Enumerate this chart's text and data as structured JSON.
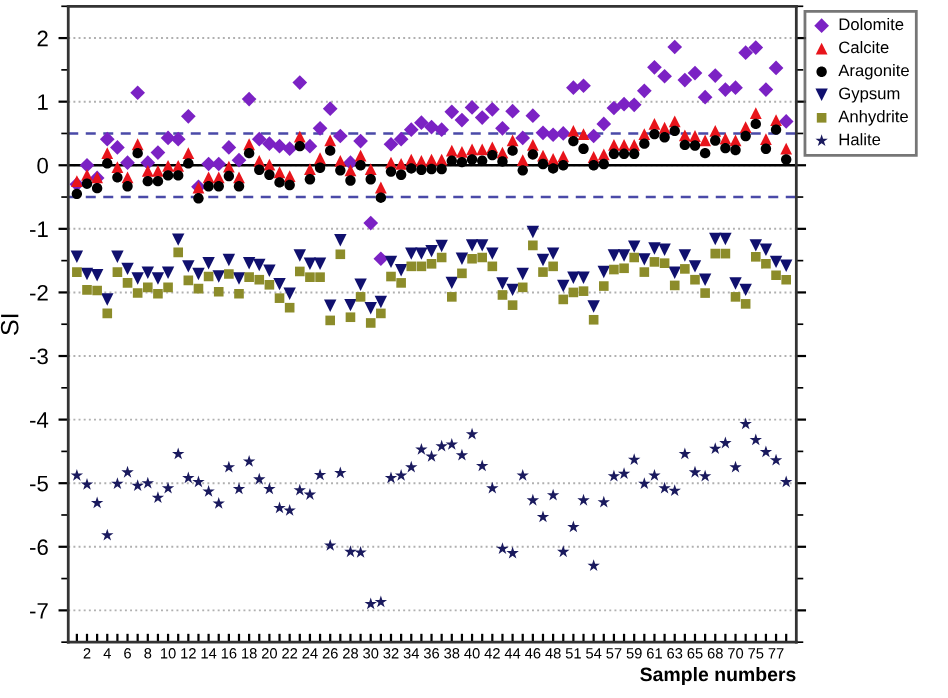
{
  "chart_data": {
    "type": "scatter",
    "xlabel": "Sample numbers",
    "ylabel": "SI",
    "categories": [
      null,
      "2",
      null,
      "4",
      null,
      "6",
      null,
      "8",
      null,
      "10",
      null,
      "12",
      null,
      "14",
      null,
      "16",
      null,
      "18",
      null,
      "20",
      null,
      "22",
      null,
      "24",
      null,
      "26",
      null,
      "28",
      null,
      "30",
      null,
      "32",
      null,
      "34",
      null,
      "36",
      null,
      "38",
      null,
      "40",
      null,
      "42",
      null,
      "44",
      null,
      "46",
      null,
      "48",
      null,
      "51",
      null,
      "54",
      null,
      "57",
      null,
      "59",
      null,
      "61",
      null,
      "63",
      null,
      "65",
      null,
      "68",
      null,
      "70",
      null,
      "75",
      null,
      "77",
      null
    ],
    "ylim": [
      -7.5,
      2.5
    ],
    "yticks": [
      -7,
      -6,
      -5,
      -4,
      -3,
      -2,
      -1,
      0,
      1,
      2
    ],
    "grid": "y",
    "legend": "top right",
    "ref_lines": [
      {
        "axis": "y",
        "value": 0,
        "color": "#000000",
        "line_style": "solid"
      },
      {
        "axis": "y",
        "value": 0.5,
        "color": "#4a4aa8",
        "line_style": "dashed"
      },
      {
        "axis": "y",
        "value": -0.5,
        "color": "#4a4aa8",
        "line_style": "dashed"
      }
    ],
    "series": [
      {
        "name": "Dolomite",
        "color": "#7b22c4",
        "marker": "diamond",
        "values": [
          -0.3,
          0.0,
          -0.2,
          0.41,
          0.28,
          0.04,
          1.14,
          0.04,
          0.2,
          0.43,
          0.41,
          0.77,
          -0.34,
          0.02,
          0.02,
          0.28,
          0.08,
          1.04,
          0.41,
          0.34,
          0.3,
          0.26,
          1.3,
          0.3,
          0.58,
          0.89,
          0.46,
          0.04,
          0.38,
          -0.91,
          -1.47,
          0.33,
          0.41,
          0.56,
          0.67,
          0.6,
          0.56,
          0.84,
          0.71,
          0.91,
          0.75,
          0.88,
          0.58,
          0.85,
          0.43,
          0.78,
          0.51,
          0.48,
          0.5,
          1.22,
          1.25,
          0.46,
          0.65,
          0.9,
          0.96,
          0.95,
          1.17,
          1.54,
          1.4,
          1.86,
          1.34,
          1.45,
          1.07,
          1.41,
          1.19,
          1.22,
          1.77,
          1.85,
          1.19,
          1.53,
          0.69
        ]
      },
      {
        "name": "Calcite",
        "color": "#e8141b",
        "marker": "triangle",
        "values": [
          -0.25,
          -0.15,
          -0.19,
          0.19,
          -0.03,
          -0.19,
          0.33,
          -0.09,
          -0.09,
          -0.01,
          -0.01,
          0.19,
          -0.35,
          -0.19,
          -0.19,
          -0.02,
          -0.19,
          0.33,
          0.07,
          0.01,
          -0.11,
          -0.17,
          0.45,
          -0.06,
          0.11,
          0.39,
          0.07,
          -0.08,
          0.15,
          -0.06,
          -0.35,
          0.04,
          0.02,
          0.09,
          0.07,
          0.09,
          0.09,
          0.23,
          0.21,
          0.25,
          0.25,
          0.28,
          0.2,
          0.39,
          0.08,
          0.32,
          0.15,
          0.1,
          0.14,
          0.54,
          0.49,
          0.13,
          0.17,
          0.32,
          0.32,
          0.32,
          0.49,
          0.65,
          0.59,
          0.69,
          0.47,
          0.46,
          0.39,
          0.54,
          0.42,
          0.39,
          0.6,
          0.82,
          0.41,
          0.71,
          0.26
        ]
      },
      {
        "name": "Aragonite",
        "color": "#000000",
        "marker": "circle",
        "values": [
          -0.45,
          -0.29,
          -0.36,
          0.03,
          -0.19,
          -0.33,
          0.19,
          -0.25,
          -0.25,
          -0.16,
          -0.16,
          0.03,
          -0.52,
          -0.33,
          -0.33,
          -0.17,
          -0.33,
          0.19,
          -0.07,
          -0.15,
          -0.27,
          -0.31,
          0.3,
          -0.22,
          -0.04,
          0.23,
          -0.08,
          -0.24,
          0.0,
          -0.22,
          -0.51,
          -0.1,
          -0.15,
          -0.05,
          -0.07,
          -0.06,
          -0.06,
          0.07,
          0.05,
          0.09,
          0.07,
          0.16,
          0.06,
          0.23,
          -0.08,
          0.17,
          0.02,
          -0.05,
          0.0,
          0.38,
          0.26,
          0.0,
          0.02,
          0.18,
          0.18,
          0.18,
          0.34,
          0.49,
          0.44,
          0.54,
          0.32,
          0.31,
          0.19,
          0.39,
          0.27,
          0.24,
          0.46,
          0.65,
          0.26,
          0.56,
          0.09
        ]
      },
      {
        "name": "Gypsum",
        "color": "#10106e",
        "marker": "triangle-down",
        "values": [
          -1.44,
          -1.71,
          -1.73,
          -2.11,
          -1.44,
          -1.63,
          -1.78,
          -1.69,
          -1.78,
          -1.69,
          -1.17,
          -1.59,
          -1.71,
          -1.54,
          -1.75,
          -1.49,
          -1.78,
          -1.54,
          -1.57,
          -1.66,
          -1.87,
          -2.02,
          -1.42,
          -1.55,
          -1.55,
          -2.21,
          -1.18,
          -2.2,
          -1.88,
          -2.25,
          -2.15,
          -1.52,
          -1.65,
          -1.39,
          -1.39,
          -1.35,
          -1.27,
          -1.85,
          -1.47,
          -1.26,
          -1.26,
          -1.39,
          -1.86,
          -1.96,
          -1.71,
          -1.05,
          -1.49,
          -1.39,
          -1.9,
          -1.77,
          -1.77,
          -2.22,
          -1.68,
          -1.42,
          -1.42,
          -1.28,
          -1.48,
          -1.31,
          -1.33,
          -1.69,
          -1.42,
          -1.59,
          -1.8,
          -1.16,
          -1.16,
          -1.86,
          -1.96,
          -1.26,
          -1.33,
          -1.52,
          -1.58
        ]
      },
      {
        "name": "Anhydrite",
        "color": "#8c8c2a",
        "marker": "square",
        "values": [
          -1.68,
          -1.96,
          -1.97,
          -2.33,
          -1.68,
          -1.85,
          -2.01,
          -1.92,
          -2.02,
          -1.92,
          -1.37,
          -1.81,
          -1.94,
          -1.75,
          -1.99,
          -1.71,
          -2.02,
          -1.76,
          -1.8,
          -1.88,
          -2.09,
          -2.24,
          -1.67,
          -1.76,
          -1.76,
          -2.44,
          -1.4,
          -2.39,
          -2.07,
          -2.48,
          -2.33,
          -1.75,
          -1.85,
          -1.59,
          -1.59,
          -1.55,
          -1.45,
          -2.07,
          -1.7,
          -1.47,
          -1.45,
          -1.59,
          -2.04,
          -2.2,
          -1.92,
          -1.26,
          -1.68,
          -1.59,
          -2.11,
          -2.0,
          -1.98,
          -2.43,
          -1.9,
          -1.64,
          -1.62,
          -1.45,
          -1.68,
          -1.52,
          -1.54,
          -1.89,
          -1.63,
          -1.8,
          -2.01,
          -1.39,
          -1.39,
          -2.07,
          -2.18,
          -1.44,
          -1.55,
          -1.73,
          -1.8
        ]
      },
      {
        "name": "Halite",
        "color": "#1a1a5e",
        "marker": "star",
        "values": [
          -4.88,
          -5.02,
          -5.31,
          -5.82,
          -5.01,
          -4.83,
          -5.04,
          -5.0,
          -5.23,
          -5.08,
          -4.54,
          -4.92,
          -4.98,
          -5.13,
          -5.32,
          -4.75,
          -5.09,
          -4.66,
          -4.94,
          -5.09,
          -5.39,
          -5.43,
          -5.11,
          -5.18,
          -4.87,
          -5.98,
          -4.84,
          -6.08,
          -6.09,
          -6.9,
          -6.87,
          -4.92,
          -4.88,
          -4.75,
          -4.47,
          -4.58,
          -4.42,
          -4.39,
          -4.56,
          -4.23,
          -4.73,
          -5.08,
          -6.03,
          -6.1,
          -4.88,
          -5.27,
          -5.53,
          -5.19,
          -6.08,
          -5.69,
          -5.27,
          -6.3,
          -5.3,
          -4.89,
          -4.85,
          -4.63,
          -5.01,
          -4.88,
          -5.08,
          -5.12,
          -4.54,
          -4.83,
          -4.89,
          -4.46,
          -4.37,
          -4.75,
          -4.07,
          -4.32,
          -4.51,
          -4.64,
          -4.98
        ]
      }
    ]
  }
}
